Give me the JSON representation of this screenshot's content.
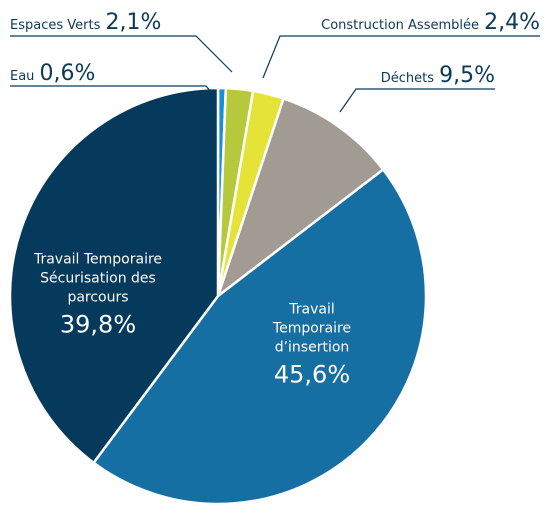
{
  "chart_data": {
    "type": "pie",
    "categories": [
      "Eau",
      "Espaces Verts",
      "Construction Assemblée",
      "Déchets",
      "Travail Temporaire d’insertion",
      "Travail Temporaire Sécurisation des parcours"
    ],
    "values": [
      0.6,
      2.1,
      2.4,
      9.5,
      45.6,
      39.8
    ],
    "value_labels": [
      "0,6%",
      "2,1%",
      "2,4%",
      "9,5%",
      "45,6%",
      "39,8%"
    ],
    "colors": [
      "#1c8fd2",
      "#b6c83c",
      "#e5e337",
      "#a19b93",
      "#166fa3",
      "#063a5c"
    ]
  }
}
